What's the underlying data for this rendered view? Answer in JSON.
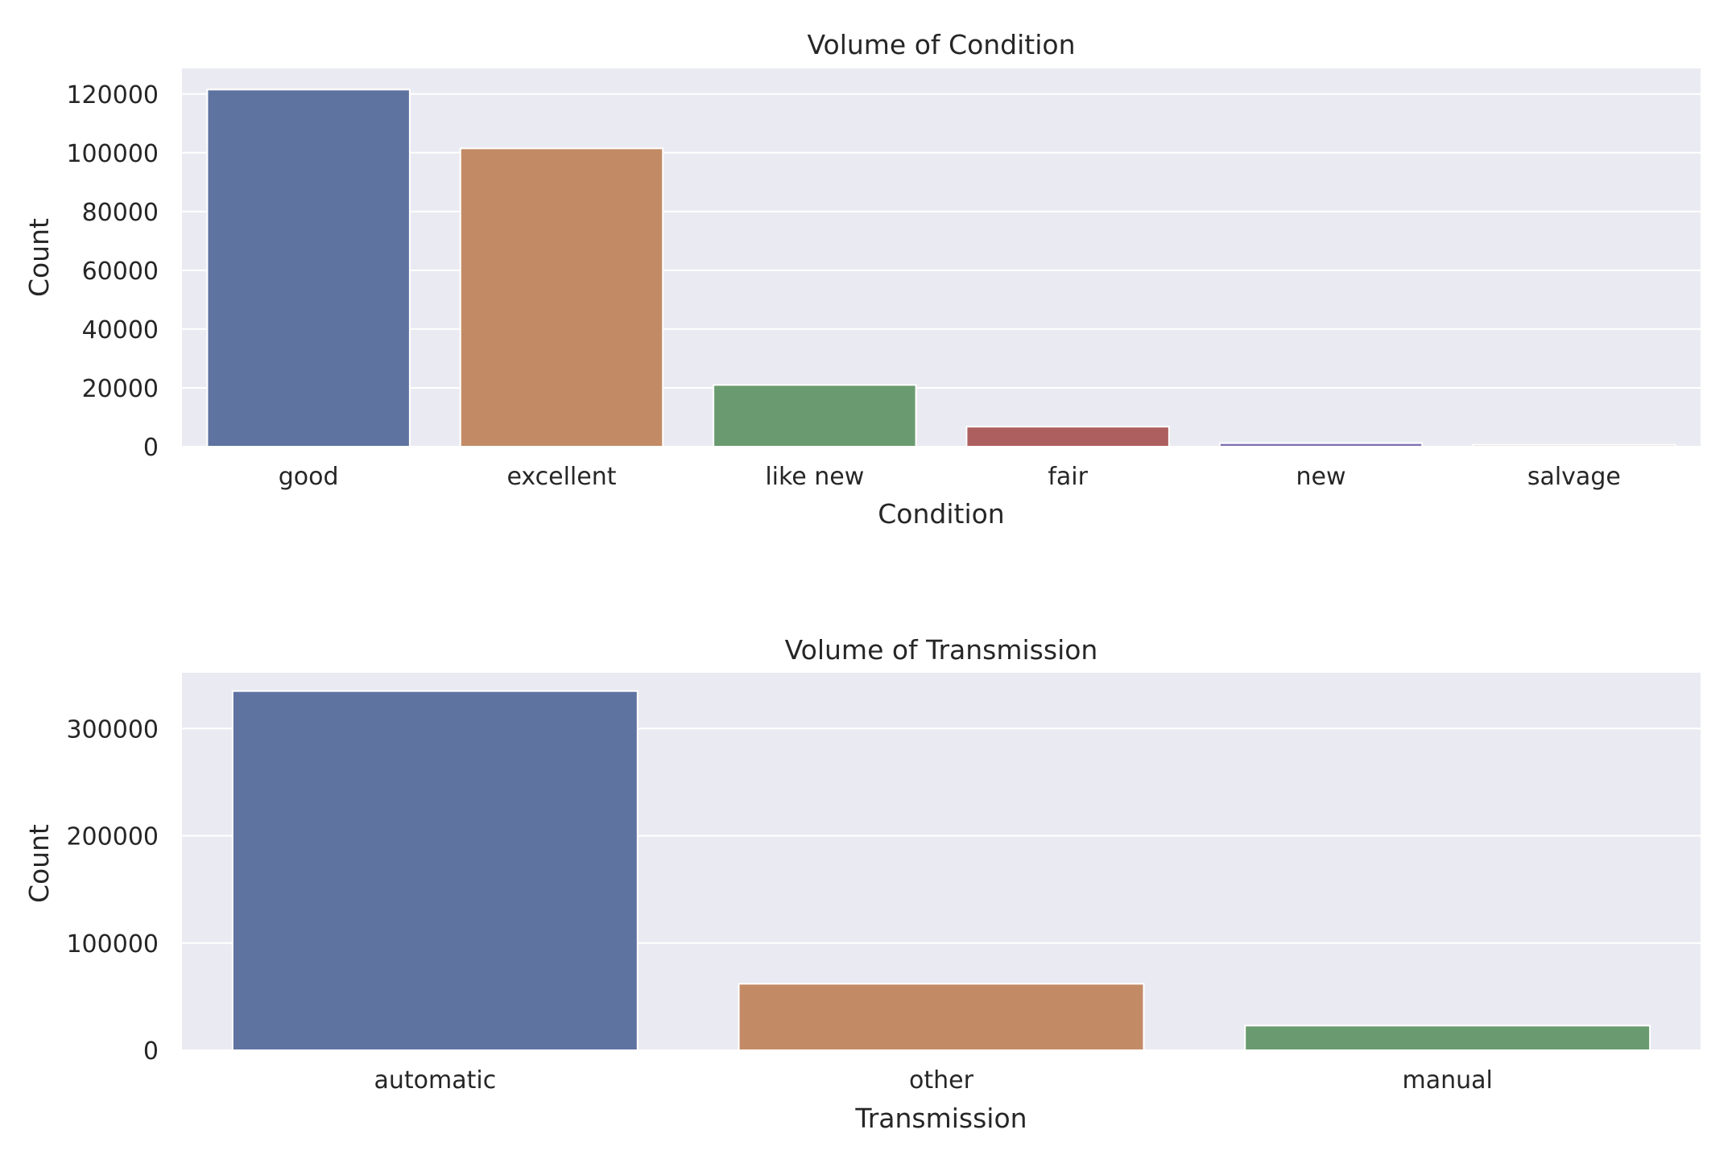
{
  "chart_data": [
    {
      "type": "bar",
      "title": "Volume of Condition",
      "xlabel": "Condition",
      "ylabel": "Count",
      "categories": [
        "good",
        "excellent",
        "like new",
        "fair",
        "new",
        "salvage"
      ],
      "values": [
        121500,
        101500,
        21000,
        6800,
        1200,
        600
      ],
      "colors": [
        "#5f73a1",
        "#c28b66",
        "#6a9b70",
        "#ad5f5f",
        "#8172b3",
        "#937860"
      ],
      "yticks": [
        0,
        20000,
        40000,
        60000,
        80000,
        100000,
        120000
      ],
      "ytick_labels": [
        "0",
        "20000",
        "40000",
        "60000",
        "80000",
        "100000",
        "120000"
      ],
      "ylim": [
        0,
        128700
      ],
      "grid": true
    },
    {
      "type": "bar",
      "title": "Volume of Transmission",
      "xlabel": "Transmission",
      "ylabel": "Count",
      "categories": [
        "automatic",
        "other",
        "manual"
      ],
      "values": [
        335000,
        62000,
        23000
      ],
      "colors": [
        "#5f73a1",
        "#c28b66",
        "#6a9b70"
      ],
      "yticks": [
        0,
        100000,
        200000,
        300000
      ],
      "ytick_labels": [
        "0",
        "100000",
        "200000",
        "300000"
      ],
      "ylim": [
        0,
        352000
      ],
      "grid": true
    }
  ]
}
